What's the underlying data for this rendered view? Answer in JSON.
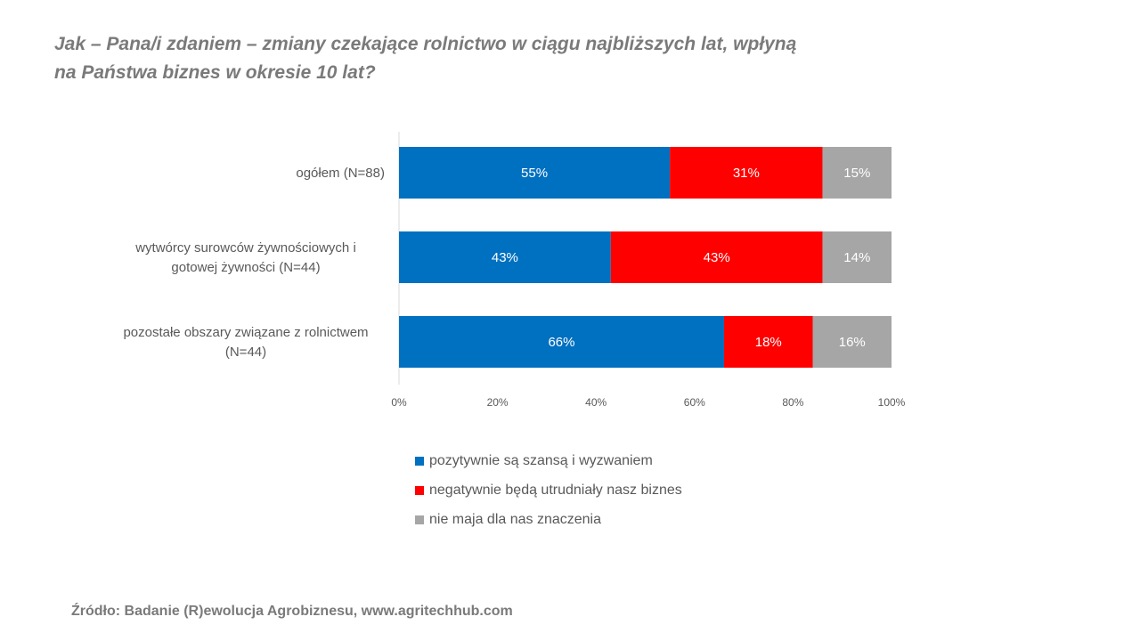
{
  "title": {
    "line1": "Jak – Pana/i zdaniem – zmiany czekające rolnictwo w ciągu najbliższych lat, wpłyną",
    "line2": "na Państwa biznes w okresie 10 lat?"
  },
  "chart_data": {
    "type": "bar",
    "orientation": "horizontal",
    "stacked": true,
    "categories": [
      [
        "ogółem (N=88)"
      ],
      [
        "wytwórcy surowców żywnościowych i",
        "gotowej żywności (N=44)"
      ],
      [
        "pozostałe obszary związane z rolnictwem",
        "(N=44)"
      ]
    ],
    "series": [
      {
        "name": "pozytywnie są szansą i wyzwaniem",
        "color": "#0070C0",
        "values": [
          55,
          43,
          66
        ],
        "labels": [
          "55%",
          "43%",
          "66%"
        ]
      },
      {
        "name": "negatywnie będą utrudniały nasz biznes",
        "color": "#FF0000",
        "values": [
          31,
          43,
          18
        ],
        "labels": [
          "31%",
          "43%",
          "18%"
        ]
      },
      {
        "name": "nie maja dla nas znaczenia",
        "color": "#A6A6A6",
        "values": [
          15,
          14,
          16
        ],
        "labels": [
          "15%",
          "14%",
          "16%"
        ]
      }
    ],
    "xlim": [
      0,
      100
    ],
    "x_ticks": [
      "0%",
      "20%",
      "40%",
      "60%",
      "80%",
      "100%"
    ],
    "grid": false,
    "legend_position": "bottom"
  },
  "source": "Źródło: Badanie (R)ewolucja Agrobiznesu, www.agritechhub.com"
}
